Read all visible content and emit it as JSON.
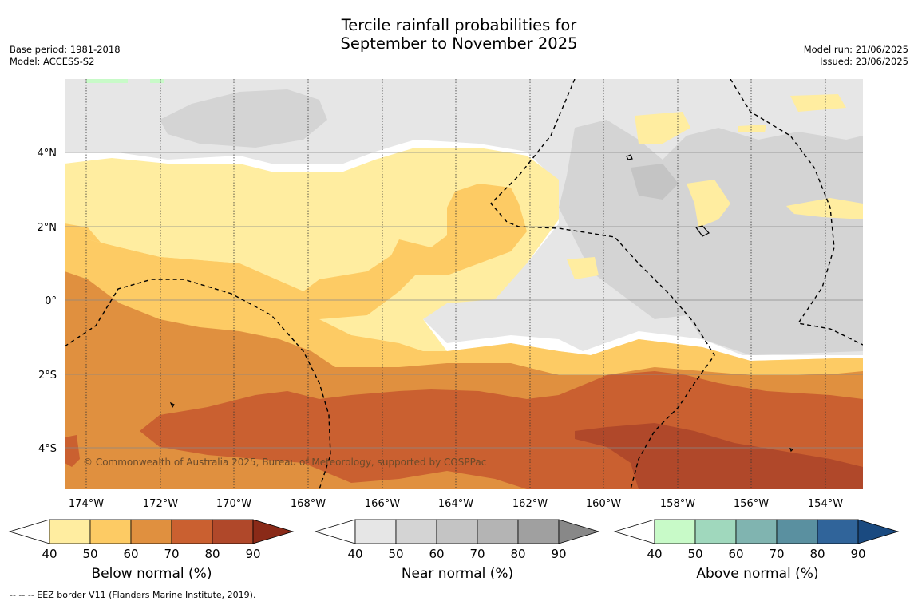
{
  "title_line1": "Tercile rainfall probabilities for",
  "title_line2": "September to November 2025",
  "meta_left": [
    "Base period: 1981-2018",
    "Model: ACCESS-S2"
  ],
  "meta_right": [
    "Model run: 21/06/2025",
    "Issued: 23/06/2025"
  ],
  "map": {
    "lon_ticks": [
      "174°W",
      "172°W",
      "170°W",
      "168°W",
      "166°W",
      "164°W",
      "162°W",
      "160°W",
      "158°W",
      "156°W",
      "154°W"
    ],
    "lat_ticks": [
      "4°N",
      "2°N",
      "0°",
      "2°S",
      "4°S"
    ],
    "copyright": "© Commonwealth of Australia 2025, Bureau of Meteorology, supported by COSPPac"
  },
  "colorbars": [
    {
      "title": "Below normal (%)",
      "ticks": [
        "40",
        "50",
        "60",
        "70",
        "80",
        "90"
      ],
      "colors": [
        "#ffeda0",
        "#fdcb64",
        "#e0903f",
        "#ca6030",
        "#b0482a",
        "#8a2a18"
      ]
    },
    {
      "title": "Near normal (%)",
      "ticks": [
        "40",
        "50",
        "60",
        "70",
        "80",
        "90"
      ],
      "colors": [
        "#e6e6e6",
        "#d4d4d4",
        "#c4c4c4",
        "#b4b4b4",
        "#a0a0a0",
        "#888888"
      ]
    },
    {
      "title": "Above normal (%)",
      "ticks": [
        "40",
        "50",
        "60",
        "70",
        "80",
        "90"
      ],
      "colors": [
        "#c8fac8",
        "#a0d8bd",
        "#80b4b0",
        "#5a90a0",
        "#30649a",
        "#1a4a80"
      ]
    }
  ],
  "footer": "--  --  -- EEZ border V11 (Flanders Marine Institute, 2019)."
}
